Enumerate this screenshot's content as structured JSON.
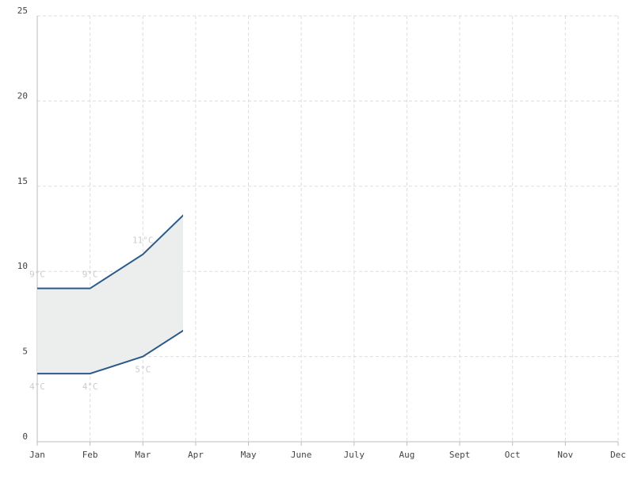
{
  "chart_data": {
    "type": "arearange-line",
    "categories": [
      "Jan",
      "Feb",
      "Mar",
      "Apr",
      "May",
      "June",
      "July",
      "Aug",
      "Sept",
      "Oct",
      "Nov",
      "Dec"
    ],
    "series": [
      {
        "color": "#2b5a8a",
        "values": [
          9,
          9,
          11,
          14,
          null,
          null,
          null,
          null,
          null,
          null,
          null,
          null
        ],
        "value_labels": [
          "9°C",
          "9°C",
          "11°C",
          null,
          null,
          null,
          null,
          null,
          null,
          null,
          null,
          null
        ]
      },
      {
        "color": "#2b5a8a",
        "values": [
          4,
          4,
          5,
          7,
          null,
          null,
          null,
          null,
          null,
          null,
          null,
          null
        ],
        "value_labels": [
          "4°C",
          "4°C",
          "5°C",
          null,
          null,
          null,
          null,
          null,
          null,
          null,
          null,
          null
        ]
      }
    ],
    "area_color": "#eceeee",
    "ylim": [
      0,
      25
    ],
    "yticks": [
      0,
      5,
      10,
      15,
      20,
      25
    ],
    "grid": true
  }
}
